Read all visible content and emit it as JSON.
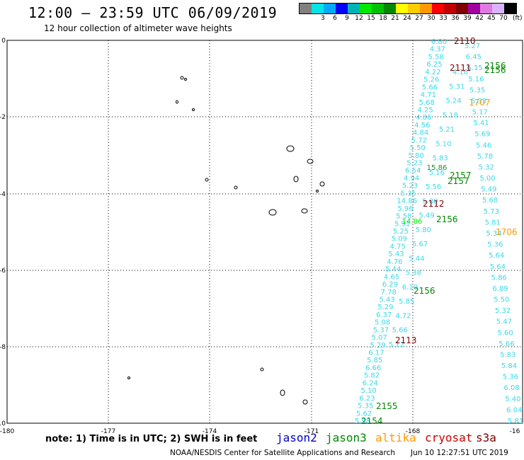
{
  "header": {
    "title": "12:00 — 23:59 UTC 06/09/2019",
    "subtitle": "12 hour collection of altimeter wave heights"
  },
  "legend": {
    "unit": "(ft)",
    "items": [
      {
        "label": "",
        "color": "#808080"
      },
      {
        "label": "3",
        "color": "#00e5e5"
      },
      {
        "label": "6",
        "color": "#00a8ff"
      },
      {
        "label": "9",
        "color": "#0000ff"
      },
      {
        "label": "12",
        "color": "#00b4b4"
      },
      {
        "label": "15",
        "color": "#00e800"
      },
      {
        "label": "18",
        "color": "#00c000"
      },
      {
        "label": "21",
        "color": "#008800"
      },
      {
        "label": "24",
        "color": "#ffff00"
      },
      {
        "label": "27",
        "color": "#ffcc00"
      },
      {
        "label": "30",
        "color": "#ff9900"
      },
      {
        "label": "33",
        "color": "#ff0000"
      },
      {
        "label": "36",
        "color": "#c00000"
      },
      {
        "label": "39",
        "color": "#800000"
      },
      {
        "label": "42",
        "color": "#a000a0"
      },
      {
        "label": "45",
        "color": "#e07ae0"
      },
      {
        "label": "70",
        "color": "#d9b3ff"
      },
      {
        "label": "",
        "color": "#000000"
      }
    ]
  },
  "map": {
    "lon_labels": [
      "-180",
      "-177",
      "-174",
      "-171",
      "-168",
      "-16"
    ],
    "lat_labels": [
      "0",
      "-2",
      "-4",
      "-6",
      "-8",
      "-10"
    ],
    "right_track": [
      "6.80",
      "4.37",
      "5.58",
      "6.25",
      "4.22",
      "5.26",
      "5.66",
      "4.71",
      "5.68",
      "4.25",
      "4.86",
      "4.56",
      "4.84",
      "5.72",
      "5.50",
      "5.80",
      "5.23",
      "6.54",
      "4.94",
      "5.23",
      "5.35",
      "14.86",
      "5.96",
      "5.58",
      "5.91",
      "5.25",
      "5.09",
      "4.75",
      "5.43",
      "4.76",
      "5.44",
      "4.65",
      "6.29",
      "7.78",
      "5.43",
      "5.29",
      "6.37",
      "5.08",
      "5.37",
      "5.07",
      "5.29",
      "6.17",
      "5.85",
      "6.66",
      "5.82",
      "6.24",
      "5.10",
      "6.23",
      "5.35",
      "5.62",
      "5.98"
    ],
    "left_track": [
      "5.27",
      "6.45",
      "6.15",
      "5.16",
      "5.35",
      "5.33",
      "5.17",
      "5.41",
      "5.69",
      "5.46",
      "5.78",
      "5.32",
      "5.00",
      "5.49",
      "5.68",
      "5.73",
      "5.81",
      "5.34",
      "5.36",
      "5.64",
      "5.64",
      "5.86",
      "6.89",
      "5.50",
      "5.32",
      "5.47",
      "5.60",
      "5.66",
      "5.83",
      "5.84",
      "5.36",
      "6.08",
      "5.40",
      "6.04",
      "5.81"
    ],
    "mid_track": [
      "4.16",
      "5.31",
      "5.24",
      "5.18",
      "5.21",
      "5.10",
      "5.83",
      "5.16",
      "5.56",
      "5.00",
      "5.49",
      "5.80",
      "5.67",
      "5.44",
      "5.38",
      "6.10",
      "5.85",
      "4.72",
      "5.66",
      "5.12"
    ],
    "time_labels": [
      {
        "text": "2110",
        "sat": "cryosat"
      },
      {
        "text": "2111",
        "sat": "cryosat"
      },
      {
        "text": "2156",
        "sat": "jason3"
      },
      {
        "text": "2156",
        "sat": "jason3"
      },
      {
        "text": "1707",
        "sat": "altika"
      },
      {
        "text": "2157",
        "sat": "jason3"
      },
      {
        "text": "2157",
        "sat": "jason3"
      },
      {
        "text": "2112",
        "sat": "cryosat"
      },
      {
        "text": "2156",
        "sat": "jason3"
      },
      {
        "text": "1706",
        "sat": "altika"
      },
      {
        "text": "2156",
        "sat": "jason3"
      },
      {
        "text": "2113",
        "sat": "cryosat"
      },
      {
        "text": "2155",
        "sat": "jason3"
      },
      {
        "text": "2154",
        "sat": "jason3"
      }
    ],
    "highlight_values": [
      {
        "text": "15.86",
        "color": "#1e8c1e"
      },
      {
        "text": "14.86",
        "color": "#00e800"
      }
    ]
  },
  "footer": {
    "note": "note:  1) Time is in UTC;  2) SWH is in feet",
    "satellites": [
      {
        "name": "jason2",
        "color": "#0000cc"
      },
      {
        "name": "jason3",
        "color": "#008800"
      },
      {
        "name": "altika",
        "color": "#ff9900"
      },
      {
        "name": "cryosat",
        "color": "#cc0000"
      },
      {
        "name": "s3a",
        "color": "#800000"
      }
    ],
    "credit": "NOAA/NESDIS Center for Satellite Applications and Research",
    "timestamp": "Jun 10 12:27:51 UTC 2019"
  }
}
